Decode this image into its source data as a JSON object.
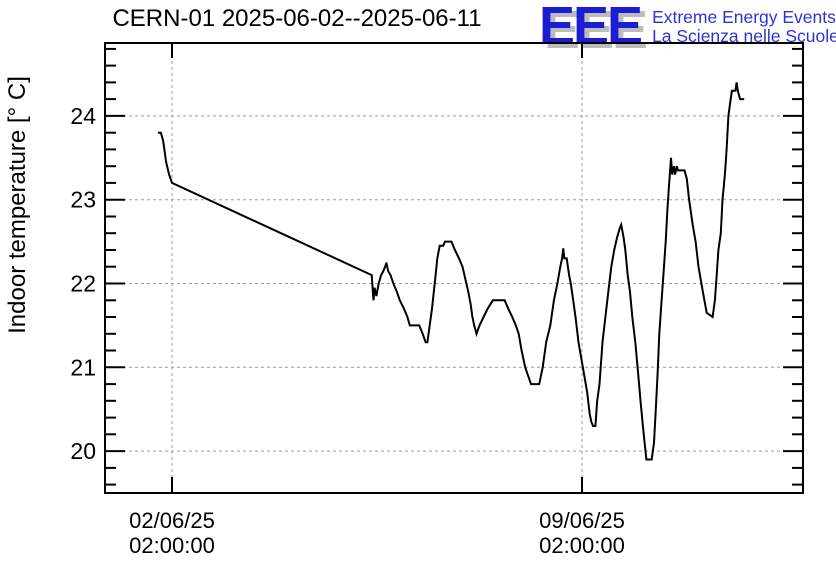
{
  "logo": {
    "acronym": "EEE",
    "line1": "Extreme Energy Events",
    "line2": "La Scienza nelle Scuole",
    "acronym_color": "#1c1cd4",
    "text_color": "#2a35d5",
    "shadow_color": "#bcbcbc"
  },
  "chart_data": {
    "type": "line",
    "title": "CERN-01 2025-06-02--2025-06-11",
    "ylabel": "Indoor temperature [° C]",
    "xlabel": "",
    "x_unit": "days since first x tick (02/06/25 02:00:00)",
    "xlim": [
      -1.144,
      10.774
    ],
    "ylim": [
      19.5,
      24.87
    ],
    "grid": "dashed gray lines at major ticks",
    "legend": "none",
    "line_color": "#000000",
    "grid_color": "#9c9c9c",
    "frame_color": "#000000",
    "y_major_ticks": [
      20,
      21,
      22,
      23,
      24
    ],
    "y_minor_step": 0.2,
    "x_major_ticks": [
      {
        "value": 0,
        "label_line1": "02/06/25",
        "label_line2": "02:00:00"
      },
      {
        "value": 7,
        "label_line1": "09/06/25",
        "label_line2": "02:00:00"
      }
    ],
    "series": [
      {
        "name": "indoor-temperature",
        "points": [
          [
            -0.24,
            23.8
          ],
          [
            -0.19,
            23.8
          ],
          [
            -0.15,
            23.7
          ],
          [
            -0.1,
            23.45
          ],
          [
            -0.05,
            23.3
          ],
          [
            0,
            23.2
          ],
          [
            3.41,
            22.1
          ],
          [
            3.43,
            21.9
          ],
          [
            3.44,
            21.8
          ],
          [
            3.46,
            21.95
          ],
          [
            3.49,
            21.85
          ],
          [
            3.53,
            22.0
          ],
          [
            3.57,
            22.1
          ],
          [
            3.61,
            22.15
          ],
          [
            3.64,
            22.2
          ],
          [
            3.66,
            22.25
          ],
          [
            3.69,
            22.15
          ],
          [
            3.73,
            22.1
          ],
          [
            3.78,
            22.0
          ],
          [
            3.84,
            21.9
          ],
          [
            3.89,
            21.8
          ],
          [
            3.96,
            21.7
          ],
          [
            4.02,
            21.6
          ],
          [
            4.06,
            21.5
          ],
          [
            4.22,
            21.5
          ],
          [
            4.28,
            21.4
          ],
          [
            4.33,
            21.3
          ],
          [
            4.36,
            21.3
          ],
          [
            4.4,
            21.5
          ],
          [
            4.44,
            21.7
          ],
          [
            4.47,
            21.9
          ],
          [
            4.5,
            22.1
          ],
          [
            4.53,
            22.3
          ],
          [
            4.57,
            22.45
          ],
          [
            4.63,
            22.45
          ],
          [
            4.66,
            22.5
          ],
          [
            4.77,
            22.5
          ],
          [
            4.83,
            22.4
          ],
          [
            4.9,
            22.3
          ],
          [
            4.96,
            22.2
          ],
          [
            5.01,
            22.05
          ],
          [
            5.06,
            21.9
          ],
          [
            5.1,
            21.75
          ],
          [
            5.13,
            21.6
          ],
          [
            5.16,
            21.5
          ],
          [
            5.2,
            21.4
          ],
          [
            5.25,
            21.5
          ],
          [
            5.32,
            21.6
          ],
          [
            5.39,
            21.7
          ],
          [
            5.48,
            21.8
          ],
          [
            5.68,
            21.8
          ],
          [
            5.74,
            21.7
          ],
          [
            5.81,
            21.6
          ],
          [
            5.87,
            21.5
          ],
          [
            5.92,
            21.4
          ],
          [
            5.97,
            21.2
          ],
          [
            6.03,
            21.0
          ],
          [
            6.08,
            20.9
          ],
          [
            6.13,
            20.8
          ],
          [
            6.27,
            20.8
          ],
          [
            6.33,
            21.0
          ],
          [
            6.39,
            21.3
          ],
          [
            6.46,
            21.5
          ],
          [
            6.52,
            21.8
          ],
          [
            6.58,
            22.0
          ],
          [
            6.63,
            22.2
          ],
          [
            6.66,
            22.3
          ],
          [
            6.68,
            22.42
          ],
          [
            6.7,
            22.3
          ],
          [
            6.74,
            22.3
          ],
          [
            6.78,
            22.1
          ],
          [
            6.81,
            22.0
          ],
          [
            6.85,
            21.8
          ],
          [
            6.89,
            21.6
          ],
          [
            6.94,
            21.3
          ],
          [
            6.99,
            21.1
          ],
          [
            7.04,
            20.9
          ],
          [
            7.09,
            20.7
          ],
          [
            7.13,
            20.45
          ],
          [
            7.16,
            20.35
          ],
          [
            7.19,
            20.3
          ],
          [
            7.23,
            20.3
          ],
          [
            7.26,
            20.6
          ],
          [
            7.3,
            20.8
          ],
          [
            7.35,
            21.3
          ],
          [
            7.4,
            21.6
          ],
          [
            7.45,
            21.9
          ],
          [
            7.5,
            22.2
          ],
          [
            7.55,
            22.4
          ],
          [
            7.6,
            22.55
          ],
          [
            7.64,
            22.65
          ],
          [
            7.67,
            22.7
          ],
          [
            7.71,
            22.55
          ],
          [
            7.74,
            22.4
          ],
          [
            7.78,
            22.1
          ],
          [
            7.82,
            21.9
          ],
          [
            7.86,
            21.6
          ],
          [
            7.91,
            21.3
          ],
          [
            7.95,
            21.0
          ],
          [
            8.0,
            20.6
          ],
          [
            8.04,
            20.3
          ],
          [
            8.07,
            20.1
          ],
          [
            8.1,
            19.9
          ],
          [
            8.19,
            19.9
          ],
          [
            8.23,
            20.1
          ],
          [
            8.26,
            20.5
          ],
          [
            8.29,
            20.9
          ],
          [
            8.32,
            21.4
          ],
          [
            8.36,
            21.8
          ],
          [
            8.39,
            22.1
          ],
          [
            8.43,
            22.5
          ],
          [
            8.46,
            22.9
          ],
          [
            8.49,
            23.2
          ],
          [
            8.52,
            23.5
          ],
          [
            8.54,
            23.3
          ],
          [
            8.57,
            23.4
          ],
          [
            8.59,
            23.3
          ],
          [
            8.62,
            23.4
          ],
          [
            8.64,
            23.35
          ],
          [
            8.75,
            23.35
          ],
          [
            8.79,
            23.25
          ],
          [
            8.83,
            23.0
          ],
          [
            8.89,
            22.7
          ],
          [
            8.94,
            22.5
          ],
          [
            8.99,
            22.2
          ],
          [
            9.04,
            22.0
          ],
          [
            9.09,
            21.8
          ],
          [
            9.13,
            21.65
          ],
          [
            9.23,
            21.6
          ],
          [
            9.27,
            21.8
          ],
          [
            9.3,
            22.1
          ],
          [
            9.33,
            22.4
          ],
          [
            9.37,
            22.6
          ],
          [
            9.4,
            23.0
          ],
          [
            9.44,
            23.3
          ],
          [
            9.47,
            23.6
          ],
          [
            9.5,
            24.0
          ],
          [
            9.53,
            24.15
          ],
          [
            9.56,
            24.3
          ],
          [
            9.62,
            24.3
          ],
          [
            9.64,
            24.4
          ],
          [
            9.66,
            24.3
          ],
          [
            9.7,
            24.2
          ],
          [
            9.77,
            24.2
          ]
        ]
      }
    ]
  }
}
